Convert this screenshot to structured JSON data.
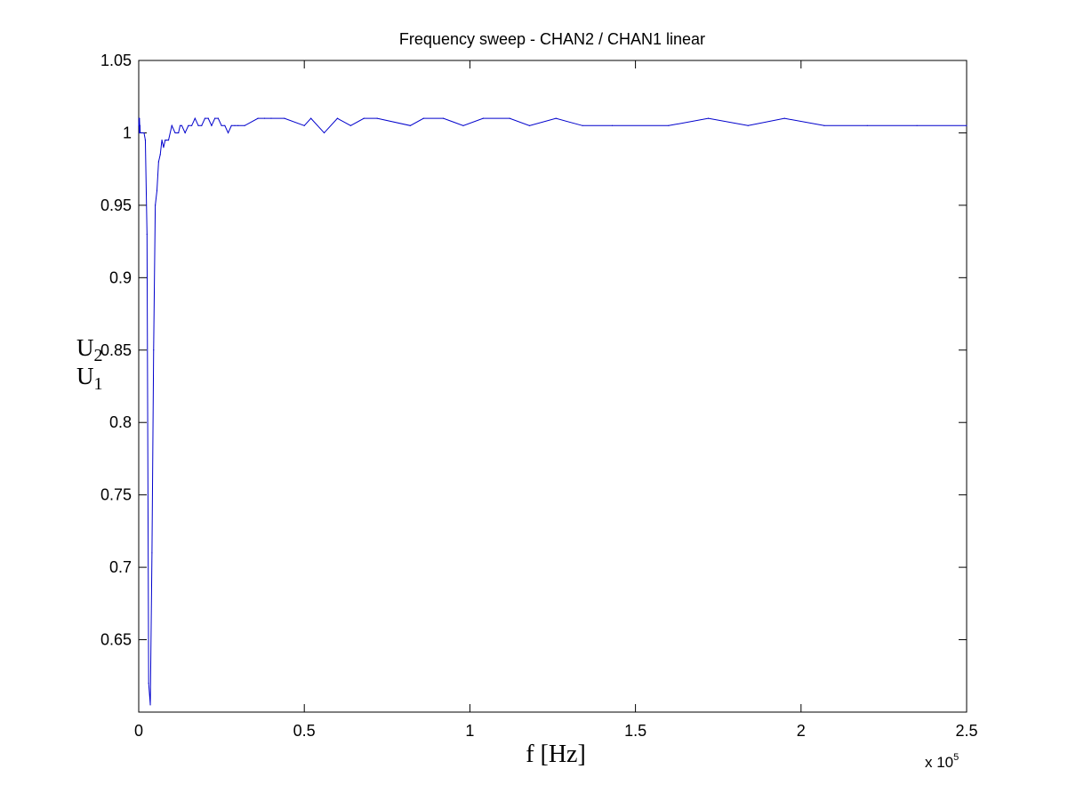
{
  "chart_data": {
    "type": "line",
    "title": "Frequency sweep - CHAN2 / CHAN1 linear",
    "xlabel": "f [Hz]",
    "ylabel": {
      "numerator": "U2",
      "denominator": "U1",
      "num_main": "U",
      "num_sub": "2",
      "den_main": "U",
      "den_sub": "1"
    },
    "x_exponent_label": {
      "base": "x 10",
      "exp": "5"
    },
    "xlim": [
      0,
      2.5
    ],
    "ylim": [
      0.6,
      1.05
    ],
    "x_ticks": [
      0,
      0.5,
      1,
      1.5,
      2,
      2.5
    ],
    "x_tick_labels": [
      "0",
      "0.5",
      "1",
      "1.5",
      "2",
      "2.5"
    ],
    "y_ticks": [
      0.65,
      0.7,
      0.75,
      0.8,
      0.85,
      0.9,
      0.95,
      1,
      1.05
    ],
    "y_tick_labels": [
      "0.65",
      "0.7",
      "0.75",
      "0.8",
      "0.85",
      "0.9",
      "0.95",
      "1",
      "1.05"
    ],
    "grid": false,
    "series": [
      {
        "color": "#0000cc",
        "x": [
          0,
          0.0008,
          0.0015,
          0.0022,
          0.003,
          0.0038,
          0.0045,
          0.0055,
          0.007,
          0.009,
          0.012,
          0.016,
          0.02,
          0.025,
          0.03,
          0.035,
          0.04,
          0.045,
          0.05,
          0.055,
          0.06,
          0.065,
          0.07,
          0.075,
          0.08,
          0.085,
          0.09,
          0.1,
          0.11,
          0.12,
          0.125,
          0.13,
          0.14,
          0.15,
          0.16,
          0.17,
          0.18,
          0.19,
          0.2,
          0.21,
          0.22,
          0.23,
          0.24,
          0.25,
          0.26,
          0.27,
          0.28,
          0.29,
          0.3,
          0.32,
          0.36,
          0.38,
          0.4,
          0.44,
          0.5,
          0.52,
          0.56,
          0.6,
          0.64,
          0.68,
          0.72,
          0.82,
          0.86,
          0.92,
          0.98,
          1.04,
          1.12,
          1.18,
          1.26,
          1.34,
          1.43,
          1.6,
          1.72,
          1.84,
          1.95,
          2.07,
          2.2,
          2.35,
          2.5
        ],
        "y": [
          1.005,
          1.01,
          1.0,
          1.01,
          1.005,
          1.005,
          1.0,
          1.0,
          1.0,
          1.0,
          1.0,
          1.0,
          0.995,
          0.93,
          0.62,
          0.605,
          0.71,
          0.85,
          0.95,
          0.96,
          0.98,
          0.985,
          0.995,
          0.99,
          0.995,
          0.995,
          0.995,
          1.005,
          1.0,
          1.0,
          1.005,
          1.005,
          1.0,
          1.005,
          1.005,
          1.01,
          1.005,
          1.005,
          1.01,
          1.01,
          1.005,
          1.01,
          1.01,
          1.005,
          1.005,
          1.0,
          1.005,
          1.005,
          1.005,
          1.005,
          1.01,
          1.01,
          1.01,
          1.01,
          1.005,
          1.01,
          1.0,
          1.01,
          1.005,
          1.01,
          1.01,
          1.005,
          1.01,
          1.01,
          1.005,
          1.01,
          1.01,
          1.005,
          1.01,
          1.005,
          1.005,
          1.005,
          1.01,
          1.005,
          1.01,
          1.005,
          1.005,
          1.005,
          1.005
        ]
      }
    ]
  }
}
